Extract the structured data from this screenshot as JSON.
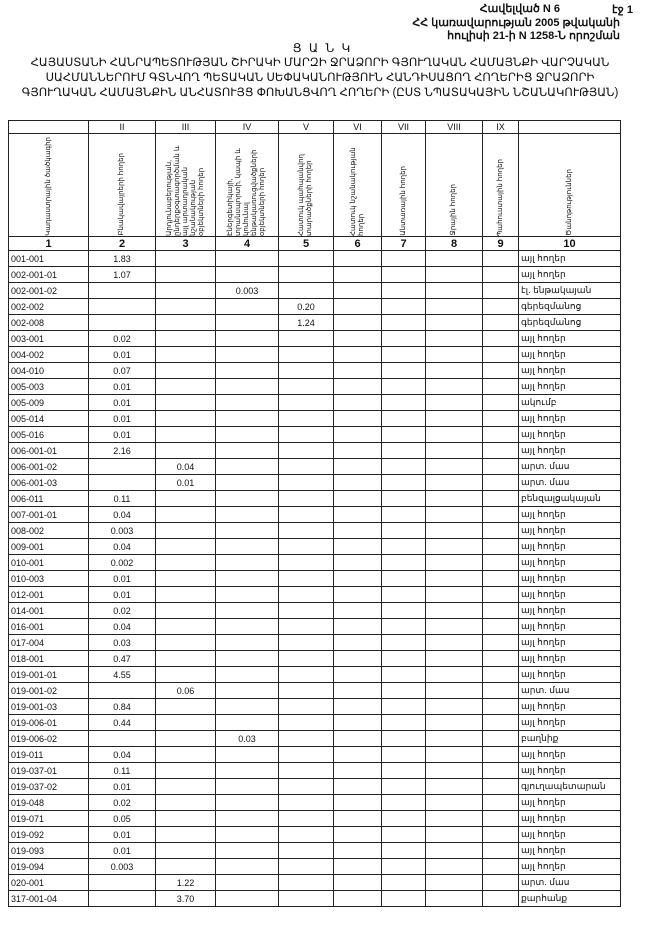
{
  "header": {
    "annex": "Հավելված N 6",
    "page": "էջ 1",
    "decree_line1": "ՀՀ կառավարության 2005 թվականի",
    "decree_line2": "հուլիսի 21-ի N 1258-Ն որոշման",
    "list_title": "Ց Ա Ն Կ",
    "main_title": "ՀԱՅԱՍՏԱՆԻ ՀԱՆՐԱՊԵՏՈՒԹՅԱՆ ՇԻՐԱԿԻ ՄԱՐԶԻ ՋՐԱՁՈՐԻ ԳՅՈՒՂԱԿԱՆ ՀԱՄԱՅՆՔԻ ՎԱՐՉԱԿԱՆ ՍԱՀՄԱՆՆԵՐՈՒՄ ԳՏՆՎՈՂ ՊԵՏԱԿԱՆ ՍԵՓԱԿԱՆՈՒԹՅՈՒՆ ՀԱՆԴԻՍԱՑՈՂ ՀՈՂԵՐԻՑ ՋՐԱՁՈՐԻ ԳՅՈՒՂԱԿԱՆ ՀԱՄԱՅՆՔԻՆ ԱՆՀԱՏՈՒՅՑ ՓՈԽԱՆՑՎՈՂ ՀՈՂԵՐԻ (ԸՍՏ ՆՊԱՏԱԿԱՅԻՆ ՆՇԱՆԱԿՈՒԹՅԱՆ)"
  },
  "table": {
    "roman": [
      "",
      "II",
      "III",
      "IV",
      "V",
      "VI",
      "VII",
      "VIII",
      "IX",
      ""
    ],
    "columns": [
      "Կադաստրային ծածկագիր",
      "Բնակավայրերի հողեր",
      "Արդյունաբերության, ընդերքօգտագործման և այլ արտադրական նշանակության օբյեկտների հողեր",
      "Էներգետիկայի, տրանսպորտի, կապի և կոմունալ ենթակառուցվածքների օբյեկտների հողեր",
      "Հատուկ պահպանվող տարածքների հողեր",
      "Հատուկ նշանակության հողեր",
      "Անտառային հողեր",
      "Ջրային հողեր",
      "Պահուստային հողեր",
      "Ծանոթություններ"
    ],
    "numbers": [
      "1",
      "2",
      "3",
      "4",
      "5",
      "6",
      "7",
      "8",
      "9",
      "10"
    ],
    "rows": [
      [
        "001-001",
        "1.83",
        "",
        "",
        "",
        "",
        "",
        "",
        "",
        "այլ հողեր"
      ],
      [
        "002-001-01",
        "1.07",
        "",
        "",
        "",
        "",
        "",
        "",
        "",
        "այլ հողեր"
      ],
      [
        "002-001-02",
        "",
        "",
        "0.003",
        "",
        "",
        "",
        "",
        "",
        "էլ. ենթակայան"
      ],
      [
        "002-002",
        "",
        "",
        "",
        "0.20",
        "",
        "",
        "",
        "",
        "գերեզմանոց"
      ],
      [
        "002-008",
        "",
        "",
        "",
        "1.24",
        "",
        "",
        "",
        "",
        "գերեզմանոց"
      ],
      [
        "003-001",
        "0.02",
        "",
        "",
        "",
        "",
        "",
        "",
        "",
        "այլ հողեր"
      ],
      [
        "004-002",
        "0.01",
        "",
        "",
        "",
        "",
        "",
        "",
        "",
        "այլ հողեր"
      ],
      [
        "004-010",
        "0.07",
        "",
        "",
        "",
        "",
        "",
        "",
        "",
        "այլ հողեր"
      ],
      [
        "005-003",
        "0.01",
        "",
        "",
        "",
        "",
        "",
        "",
        "",
        "այլ հողեր"
      ],
      [
        "005-009",
        "0.01",
        "",
        "",
        "",
        "",
        "",
        "",
        "",
        "ակումբ"
      ],
      [
        "005-014",
        "0.01",
        "",
        "",
        "",
        "",
        "",
        "",
        "",
        "այլ հողեր"
      ],
      [
        "005-016",
        "0.01",
        "",
        "",
        "",
        "",
        "",
        "",
        "",
        "այլ հողեր"
      ],
      [
        "006-001-01",
        "2.16",
        "",
        "",
        "",
        "",
        "",
        "",
        "",
        "այլ հողեր"
      ],
      [
        "006-001-02",
        "",
        "0.04",
        "",
        "",
        "",
        "",
        "",
        "",
        "արտ. մաս"
      ],
      [
        "006-001-03",
        "",
        "0.01",
        "",
        "",
        "",
        "",
        "",
        "",
        "արտ. մաս"
      ],
      [
        "006-011",
        "0.11",
        "",
        "",
        "",
        "",
        "",
        "",
        "",
        "բենզալցակայան"
      ],
      [
        "007-001-01",
        "0.04",
        "",
        "",
        "",
        "",
        "",
        "",
        "",
        "այլ հողեր"
      ],
      [
        "008-002",
        "0.003",
        "",
        "",
        "",
        "",
        "",
        "",
        "",
        "այլ հողեր"
      ],
      [
        "009-001",
        "0.04",
        "",
        "",
        "",
        "",
        "",
        "",
        "",
        "այլ հողեր"
      ],
      [
        "010-001",
        "0.002",
        "",
        "",
        "",
        "",
        "",
        "",
        "",
        "այլ հողեր"
      ],
      [
        "010-003",
        "0.01",
        "",
        "",
        "",
        "",
        "",
        "",
        "",
        "այլ հողեր"
      ],
      [
        "012-001",
        "0.01",
        "",
        "",
        "",
        "",
        "",
        "",
        "",
        "այլ հողեր"
      ],
      [
        "014-001",
        "0.02",
        "",
        "",
        "",
        "",
        "",
        "",
        "",
        "այլ հողեր"
      ],
      [
        "016-001",
        "0.04",
        "",
        "",
        "",
        "",
        "",
        "",
        "",
        "այլ հողեր"
      ],
      [
        "017-004",
        "0.03",
        "",
        "",
        "",
        "",
        "",
        "",
        "",
        "այլ հողեր"
      ],
      [
        "018-001",
        "0.47",
        "",
        "",
        "",
        "",
        "",
        "",
        "",
        "այլ հողեր"
      ],
      [
        "019-001-01",
        "4.55",
        "",
        "",
        "",
        "",
        "",
        "",
        "",
        "այլ հողեր"
      ],
      [
        "019-001-02",
        "",
        "0.06",
        "",
        "",
        "",
        "",
        "",
        "",
        "արտ. մաս"
      ],
      [
        "019-001-03",
        "0.84",
        "",
        "",
        "",
        "",
        "",
        "",
        "",
        "այլ հողեր"
      ],
      [
        "019-006-01",
        "0.44",
        "",
        "",
        "",
        "",
        "",
        "",
        "",
        "այլ հողեր"
      ],
      [
        "019-006-02",
        "",
        "",
        "0.03",
        "",
        "",
        "",
        "",
        "",
        "բաղնիք"
      ],
      [
        "019-011",
        "0.04",
        "",
        "",
        "",
        "",
        "",
        "",
        "",
        "այլ հողեր"
      ],
      [
        "019-037-01",
        "0.11",
        "",
        "",
        "",
        "",
        "",
        "",
        "",
        "այլ հողեր"
      ],
      [
        "019-037-02",
        "0.01",
        "",
        "",
        "",
        "",
        "",
        "",
        "",
        "գյուղապետարան"
      ],
      [
        "019-048",
        "0.02",
        "",
        "",
        "",
        "",
        "",
        "",
        "",
        "այլ հողեր"
      ],
      [
        "019-071",
        "0.05",
        "",
        "",
        "",
        "",
        "",
        "",
        "",
        "այլ հողեր"
      ],
      [
        "019-092",
        "0.01",
        "",
        "",
        "",
        "",
        "",
        "",
        "",
        "այլ հողեր"
      ],
      [
        "019-093",
        "0.01",
        "",
        "",
        "",
        "",
        "",
        "",
        "",
        "այլ հողեր"
      ],
      [
        "019-094",
        "0.003",
        "",
        "",
        "",
        "",
        "",
        "",
        "",
        "այլ հողեր"
      ],
      [
        "020-001",
        "",
        "1.22",
        "",
        "",
        "",
        "",
        "",
        "",
        "արտ. մաս"
      ],
      [
        "317-001-04",
        "",
        "3.70",
        "",
        "",
        "",
        "",
        "",
        "",
        "քարհանք"
      ]
    ]
  }
}
